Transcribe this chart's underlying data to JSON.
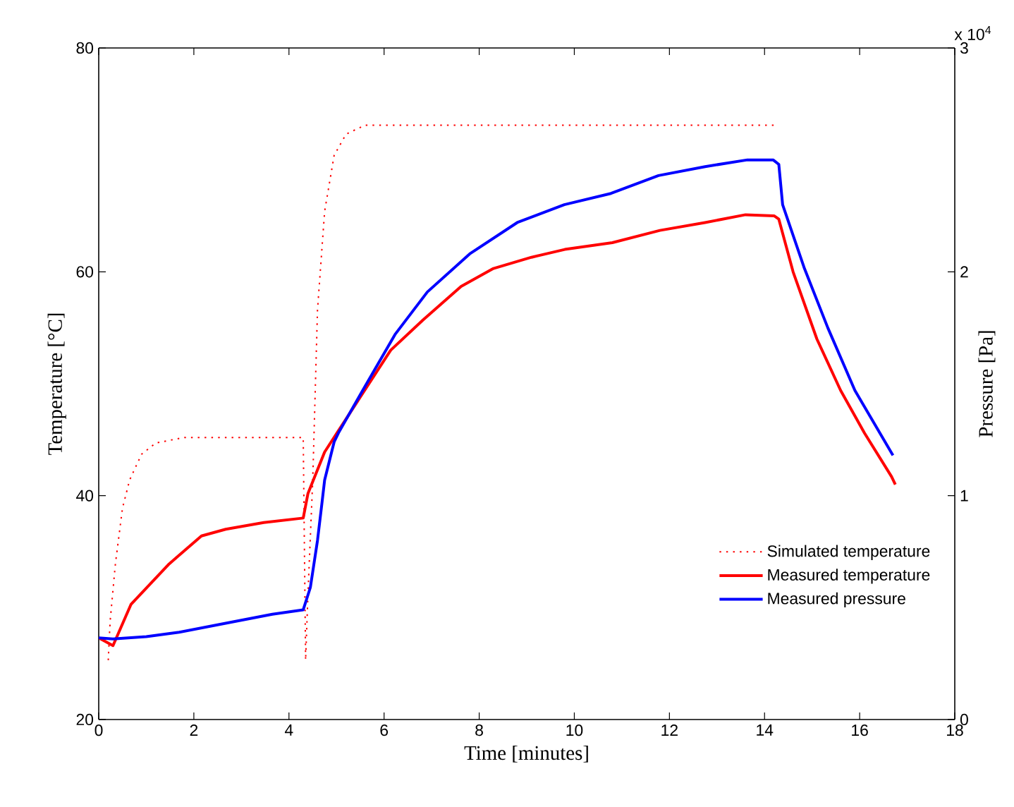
{
  "chart_data": {
    "type": "line",
    "xlabel": "Time [minutes]",
    "ylabel": "Temperature [°C]",
    "y2label": "Pressure [Pa]",
    "annotations": [
      "x 10$^{4}$"
    ],
    "xlim": [
      0,
      18
    ],
    "xticks": [
      0,
      2,
      4,
      6,
      8,
      10,
      12,
      14,
      16,
      18
    ],
    "ylim": [
      20,
      80
    ],
    "yticks": [
      20,
      40,
      60,
      80
    ],
    "y2lim": [
      0,
      3
    ],
    "y2ticks": [
      0,
      1,
      2,
      3
    ],
    "legend": "bottom right",
    "marker": "none",
    "series": [
      {
        "name": "Simulated temperature",
        "color": "#ff0000",
        "line_style": "dotted",
        "x": [
          0.2,
          0.24,
          0.35,
          0.5,
          0.65,
          0.9,
          1.2,
          1.8,
          4.3,
          4.35,
          4.4,
          4.5,
          4.6,
          4.75,
          4.95,
          5.2,
          5.6,
          6.0,
          14.2
        ],
        "values": [
          25.3,
          28.8,
          33.9,
          38.9,
          41.4,
          43.7,
          44.7,
          45.2,
          45.2,
          25.3,
          31.3,
          41.4,
          56.6,
          65.4,
          70.4,
          72.3,
          73.1,
          73.1,
          73.1
        ]
      },
      {
        "name": "Measured temperature",
        "color": "#ff0000",
        "line_style": "solid",
        "x": [
          0,
          0.3,
          0.68,
          1.48,
          2.16,
          2.67,
          3.47,
          4.3,
          4.4,
          4.75,
          5.04,
          6.14,
          6.82,
          7.62,
          8.3,
          9.1,
          9.8,
          10.8,
          11.8,
          12.75,
          13.6,
          14.2,
          14.3,
          14.6,
          15.1,
          15.6,
          16.1,
          16.67,
          16.75
        ],
        "values": [
          27.3,
          26.6,
          30.3,
          33.9,
          36.4,
          37.0,
          37.6,
          38.0,
          40.2,
          43.9,
          45.8,
          53.0,
          55.7,
          58.7,
          60.3,
          61.3,
          62.0,
          62.6,
          63.7,
          64.4,
          65.1,
          65.0,
          64.7,
          60.0,
          54.0,
          49.4,
          45.6,
          41.7,
          41.0
        ]
      },
      {
        "name": "Measured pressure",
        "color": "#0000ff",
        "line_style": "solid",
        "axis": "y2",
        "x": [
          0,
          0.3,
          1.0,
          1.69,
          2.67,
          3.65,
          4.3,
          4.45,
          4.6,
          4.69,
          4.75,
          4.95,
          5.04,
          5.55,
          6.23,
          6.91,
          7.8,
          8.8,
          9.79,
          10.77,
          11.77,
          12.75,
          13.64,
          14.18,
          14.3,
          14.38,
          14.83,
          15.33,
          15.9,
          16.7
        ],
        "values": [
          0.365,
          0.36,
          0.37,
          0.39,
          0.43,
          0.47,
          0.49,
          0.59,
          0.8,
          0.96,
          1.07,
          1.24,
          1.28,
          1.47,
          1.72,
          1.91,
          2.08,
          2.22,
          2.3,
          2.35,
          2.43,
          2.47,
          2.5,
          2.5,
          2.48,
          2.3,
          2.02,
          1.75,
          1.47,
          1.18
        ]
      }
    ]
  }
}
